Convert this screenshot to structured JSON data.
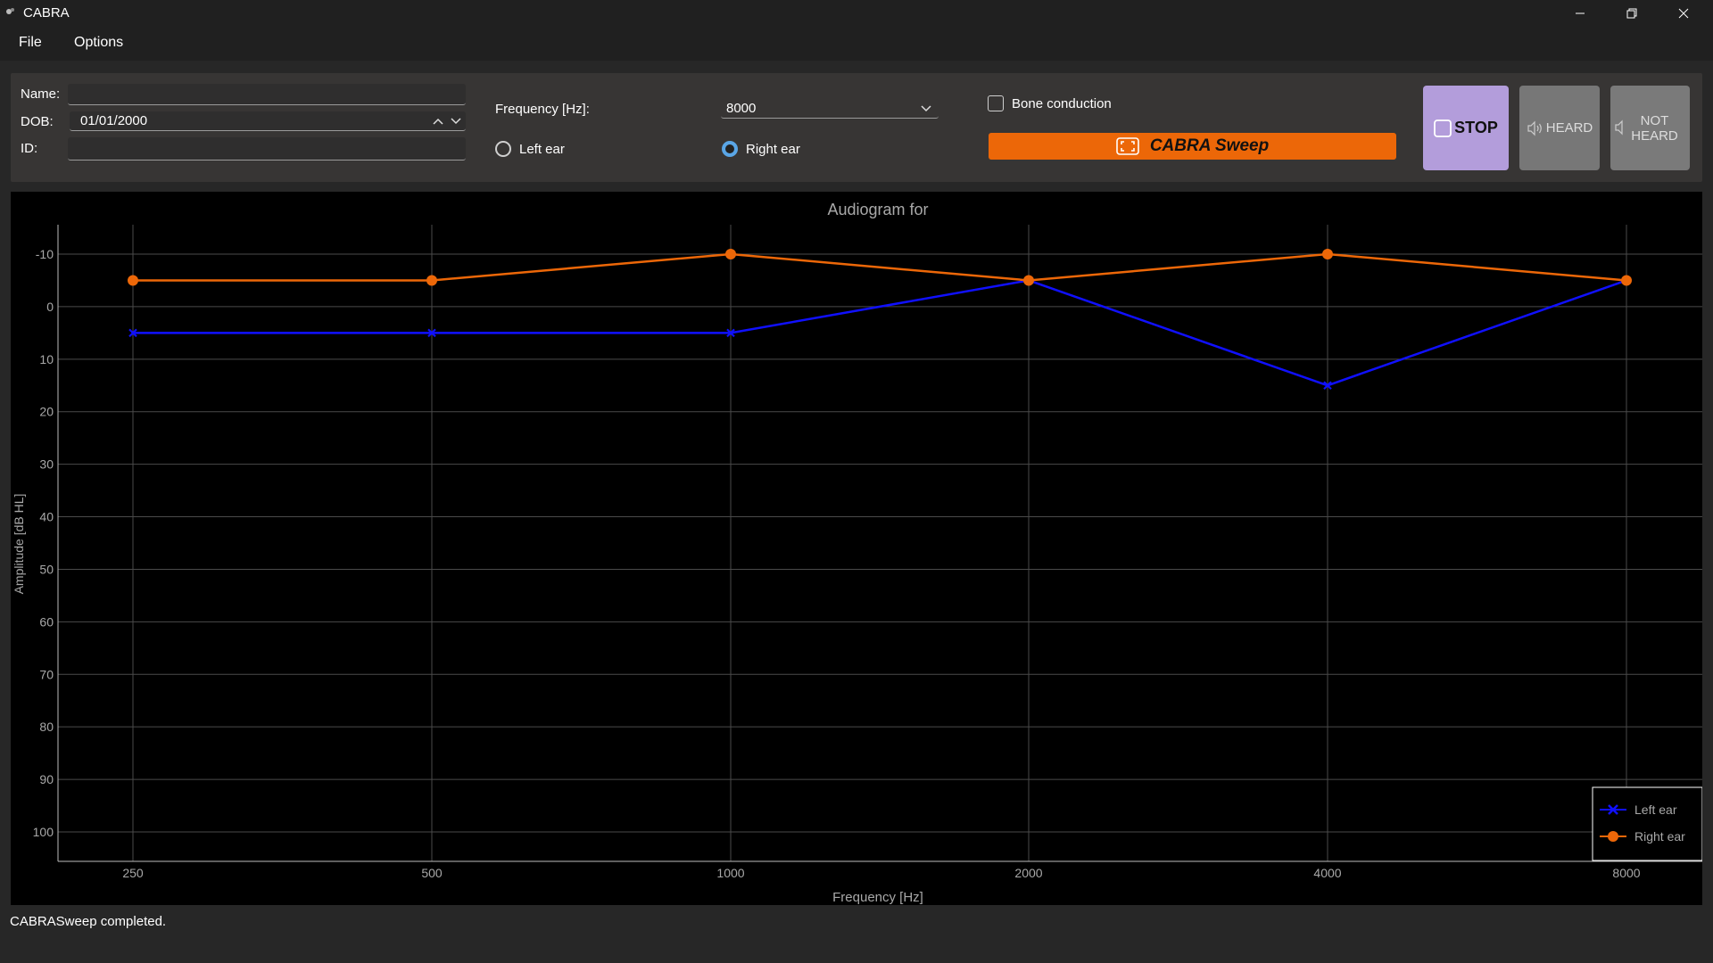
{
  "window": {
    "title": "CABRA",
    "controls": [
      "minimize-icon",
      "restore-icon",
      "close-icon"
    ]
  },
  "menu": {
    "items": [
      "File",
      "Options"
    ]
  },
  "form": {
    "name_label": "Name:",
    "name_value": "",
    "dob_label": "DOB:",
    "dob_value": "01/01/2000",
    "id_label": "ID:",
    "id_value": "",
    "frequency_label": "Frequency [Hz]:",
    "frequency_value": "8000",
    "left_ear_label": "Left ear",
    "right_ear_label": "Right ear",
    "selected_ear": "Right ear",
    "bone_conduction_label": "Bone conduction",
    "bone_conduction_checked": false
  },
  "buttons": {
    "sweep_label": "CABRA Sweep",
    "stop_label": "STOP",
    "heard_label": "HEARD",
    "not_heard_line1": "NOT",
    "not_heard_line2": "HEARD"
  },
  "colors": {
    "sweep": "#ec6708",
    "stop": "#b39ddb",
    "left_series": "#1010ff",
    "right_series": "#ec6708"
  },
  "chart_data": {
    "type": "line",
    "title": "Audiogram for",
    "xlabel": "Frequency [Hz]",
    "ylabel": "Amplitude [dB HL]",
    "x": [
      "250",
      "500",
      "1000",
      "2000",
      "4000",
      "8000"
    ],
    "yticks": [
      -10,
      0,
      10,
      20,
      30,
      40,
      50,
      60,
      70,
      80,
      90,
      100
    ],
    "ylim": [
      -15,
      105
    ],
    "y_inverted": true,
    "grid": true,
    "legend_position": "bottom-right",
    "series": [
      {
        "name": "Left ear",
        "marker": "x",
        "color": "#1010ff",
        "values": [
          5,
          5,
          5,
          -5,
          15,
          -5
        ]
      },
      {
        "name": "Right ear",
        "marker": "circle",
        "color": "#ec6708",
        "values": [
          -5,
          -5,
          -10,
          -5,
          -10,
          -5
        ]
      }
    ]
  },
  "status": "CABRASweep completed."
}
